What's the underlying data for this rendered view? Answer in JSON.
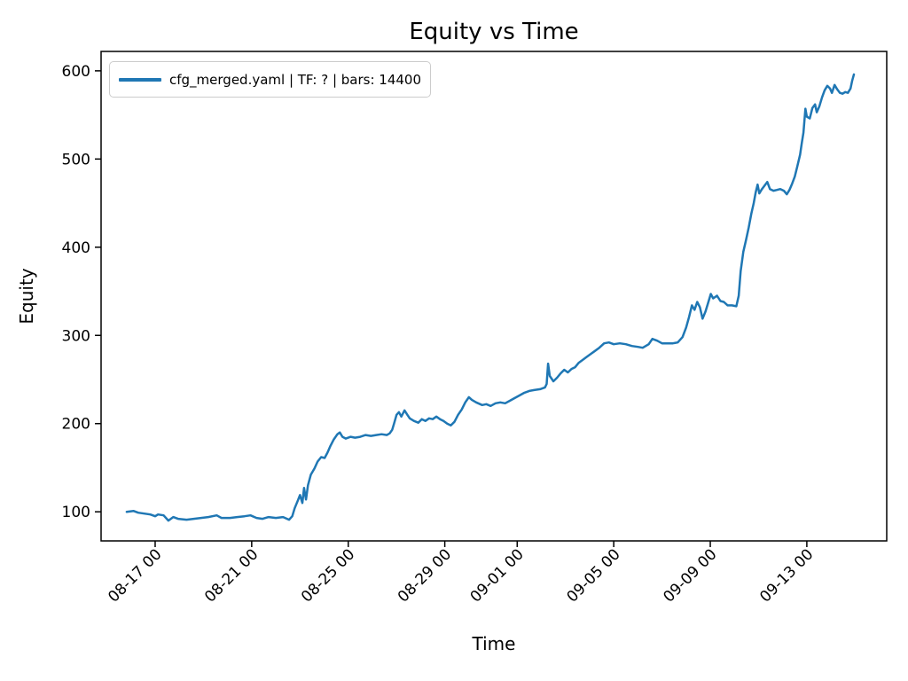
{
  "chart_data": {
    "type": "line",
    "title": "Equity vs Time",
    "xlabel": "Time",
    "ylabel": "Equity",
    "legend_position": "upper left",
    "grid": false,
    "x_value_encoding": "days, value 1.0 corresponds to tick 08-17 00",
    "x_tick_values": [
      1,
      5,
      9,
      13,
      16,
      20,
      24,
      28
    ],
    "x_tick_labels": [
      "08-17 00",
      "08-21 00",
      "08-25 00",
      "08-29 00",
      "09-01 00",
      "09-05 00",
      "09-09 00",
      "09-13 00"
    ],
    "y_ticks": [
      100,
      200,
      300,
      400,
      500,
      600
    ],
    "xlim": [
      -1.24,
      31.31
    ],
    "ylim": [
      67,
      622
    ],
    "series": [
      {
        "name": "cfg_merged.yaml | TF: ? | bars: 14400",
        "color": "#1f77b4",
        "line_width": 2.5,
        "points": [
          [
            -0.18,
            100
          ],
          [
            0.1,
            101
          ],
          [
            0.3,
            99
          ],
          [
            0.55,
            98
          ],
          [
            0.8,
            97
          ],
          [
            1.0,
            95
          ],
          [
            1.12,
            97
          ],
          [
            1.35,
            96
          ],
          [
            1.55,
            90
          ],
          [
            1.75,
            94
          ],
          [
            1.95,
            92
          ],
          [
            2.3,
            91
          ],
          [
            2.6,
            92
          ],
          [
            2.9,
            93
          ],
          [
            3.2,
            94
          ],
          [
            3.55,
            96
          ],
          [
            3.75,
            93
          ],
          [
            4.1,
            93
          ],
          [
            4.4,
            94
          ],
          [
            4.7,
            95
          ],
          [
            4.95,
            96
          ],
          [
            5.2,
            93
          ],
          [
            5.45,
            92
          ],
          [
            5.7,
            94
          ],
          [
            6.0,
            93
          ],
          [
            6.3,
            94
          ],
          [
            6.55,
            91
          ],
          [
            6.68,
            95
          ],
          [
            6.78,
            104
          ],
          [
            6.9,
            112
          ],
          [
            7.0,
            119
          ],
          [
            7.1,
            110
          ],
          [
            7.17,
            127
          ],
          [
            7.25,
            114
          ],
          [
            7.33,
            130
          ],
          [
            7.45,
            142
          ],
          [
            7.6,
            149
          ],
          [
            7.73,
            157
          ],
          [
            7.88,
            162
          ],
          [
            8.02,
            161
          ],
          [
            8.14,
            167
          ],
          [
            8.25,
            174
          ],
          [
            8.4,
            182
          ],
          [
            8.55,
            188
          ],
          [
            8.65,
            190
          ],
          [
            8.76,
            185
          ],
          [
            8.9,
            183
          ],
          [
            9.1,
            185
          ],
          [
            9.28,
            184
          ],
          [
            9.5,
            185
          ],
          [
            9.72,
            187
          ],
          [
            9.94,
            186
          ],
          [
            10.16,
            187
          ],
          [
            10.38,
            188
          ],
          [
            10.6,
            187
          ],
          [
            10.72,
            189
          ],
          [
            10.82,
            193
          ],
          [
            10.9,
            200
          ],
          [
            11.0,
            210
          ],
          [
            11.1,
            213
          ],
          [
            11.2,
            208
          ],
          [
            11.33,
            215
          ],
          [
            11.45,
            210
          ],
          [
            11.55,
            206
          ],
          [
            11.72,
            203
          ],
          [
            11.9,
            201
          ],
          [
            12.05,
            205
          ],
          [
            12.2,
            203
          ],
          [
            12.35,
            206
          ],
          [
            12.5,
            205
          ],
          [
            12.65,
            208
          ],
          [
            12.8,
            205
          ],
          [
            12.95,
            203
          ],
          [
            13.1,
            200
          ],
          [
            13.25,
            198
          ],
          [
            13.4,
            202
          ],
          [
            13.55,
            210
          ],
          [
            13.7,
            216
          ],
          [
            13.85,
            224
          ],
          [
            14.0,
            230
          ],
          [
            14.12,
            227
          ],
          [
            14.3,
            224
          ],
          [
            14.55,
            221
          ],
          [
            14.72,
            222
          ],
          [
            14.9,
            220
          ],
          [
            15.1,
            223
          ],
          [
            15.3,
            224
          ],
          [
            15.5,
            223
          ],
          [
            15.7,
            226
          ],
          [
            15.9,
            229
          ],
          [
            16.1,
            232
          ],
          [
            16.3,
            235
          ],
          [
            16.5,
            237
          ],
          [
            16.7,
            238
          ],
          [
            16.95,
            239
          ],
          [
            17.15,
            241
          ],
          [
            17.22,
            245
          ],
          [
            17.28,
            268
          ],
          [
            17.35,
            254
          ],
          [
            17.5,
            248
          ],
          [
            17.65,
            252
          ],
          [
            17.8,
            257
          ],
          [
            17.95,
            261
          ],
          [
            18.1,
            258
          ],
          [
            18.25,
            262
          ],
          [
            18.4,
            264
          ],
          [
            18.55,
            269
          ],
          [
            18.7,
            272
          ],
          [
            18.85,
            275
          ],
          [
            19.05,
            279
          ],
          [
            19.2,
            282
          ],
          [
            19.4,
            286
          ],
          [
            19.6,
            291
          ],
          [
            19.8,
            292
          ],
          [
            20.0,
            290
          ],
          [
            20.25,
            291
          ],
          [
            20.5,
            290
          ],
          [
            20.75,
            288
          ],
          [
            21.0,
            287
          ],
          [
            21.2,
            286
          ],
          [
            21.45,
            290
          ],
          [
            21.6,
            296
          ],
          [
            21.8,
            294
          ],
          [
            22.0,
            291
          ],
          [
            22.2,
            291
          ],
          [
            22.45,
            291
          ],
          [
            22.65,
            292
          ],
          [
            22.85,
            298
          ],
          [
            23.0,
            309
          ],
          [
            23.12,
            321
          ],
          [
            23.24,
            334
          ],
          [
            23.35,
            329
          ],
          [
            23.46,
            338
          ],
          [
            23.57,
            332
          ],
          [
            23.68,
            319
          ],
          [
            23.8,
            327
          ],
          [
            23.9,
            336
          ],
          [
            24.02,
            347
          ],
          [
            24.12,
            342
          ],
          [
            24.28,
            345
          ],
          [
            24.42,
            339
          ],
          [
            24.56,
            338
          ],
          [
            24.72,
            334
          ],
          [
            24.9,
            334
          ],
          [
            25.08,
            333
          ],
          [
            25.18,
            345
          ],
          [
            25.26,
            373
          ],
          [
            25.37,
            395
          ],
          [
            25.48,
            408
          ],
          [
            25.59,
            422
          ],
          [
            25.7,
            438
          ],
          [
            25.8,
            450
          ],
          [
            25.88,
            462
          ],
          [
            25.96,
            471
          ],
          [
            26.03,
            461
          ],
          [
            26.14,
            466
          ],
          [
            26.25,
            470
          ],
          [
            26.36,
            474
          ],
          [
            26.47,
            466
          ],
          [
            26.62,
            464
          ],
          [
            26.76,
            465
          ],
          [
            26.9,
            466
          ],
          [
            27.05,
            464
          ],
          [
            27.17,
            460
          ],
          [
            27.28,
            465
          ],
          [
            27.39,
            472
          ],
          [
            27.5,
            480
          ],
          [
            27.6,
            491
          ],
          [
            27.72,
            505
          ],
          [
            27.79,
            518
          ],
          [
            27.86,
            530
          ],
          [
            27.94,
            557
          ],
          [
            28.0,
            548
          ],
          [
            28.12,
            546
          ],
          [
            28.23,
            558
          ],
          [
            28.34,
            562
          ],
          [
            28.41,
            553
          ],
          [
            28.52,
            560
          ],
          [
            28.63,
            570
          ],
          [
            28.74,
            578
          ],
          [
            28.85,
            583
          ],
          [
            28.96,
            580
          ],
          [
            29.04,
            575
          ],
          [
            29.15,
            584
          ],
          [
            29.26,
            579
          ],
          [
            29.37,
            575
          ],
          [
            29.48,
            574
          ],
          [
            29.59,
            576
          ],
          [
            29.7,
            575
          ],
          [
            29.81,
            580
          ],
          [
            29.88,
            589
          ],
          [
            29.95,
            596
          ]
        ]
      }
    ]
  }
}
